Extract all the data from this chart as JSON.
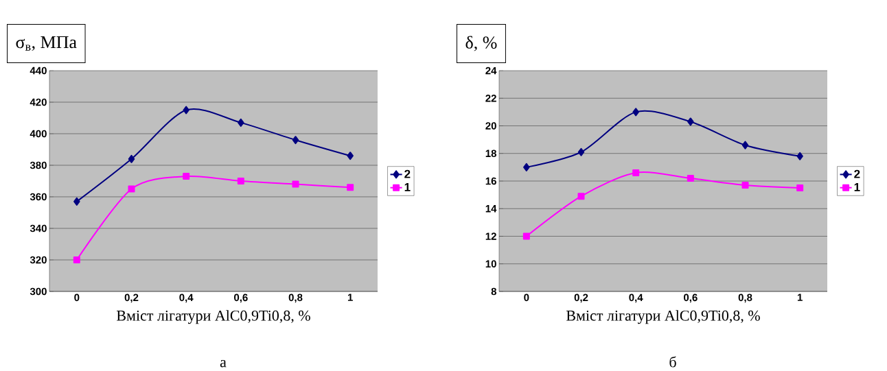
{
  "chart_data": [
    {
      "type": "line",
      "ylabel": "σ$_{в}$, МПа",
      "xlabel": "Вміст лігатури AlC0,9Ti0,8, %",
      "annotations": [
        "а"
      ],
      "categories": [
        "0",
        "0,2",
        "0,4",
        "0,6",
        "0,8",
        "1"
      ],
      "ylim": [
        300,
        440
      ],
      "yticks": [
        300,
        320,
        340,
        360,
        380,
        400,
        420,
        440
      ],
      "grid": "y",
      "legend": "right",
      "series": [
        {
          "name": "2",
          "color": "#000080",
          "marker": "diamond",
          "values": [
            357,
            384,
            415,
            407,
            396,
            386
          ]
        },
        {
          "name": "1",
          "color": "#ff00ff",
          "marker": "square",
          "values": [
            320,
            365,
            373,
            370,
            368,
            366
          ]
        }
      ]
    },
    {
      "type": "line",
      "ylabel": "δ, %",
      "xlabel": "Вміст лігатури AlC0,9Ti0,8, %",
      "annotations": [
        "б"
      ],
      "categories": [
        "0",
        "0,2",
        "0,4",
        "0,6",
        "0,8",
        "1"
      ],
      "ylim": [
        8,
        24
      ],
      "yticks": [
        8,
        10,
        12,
        14,
        16,
        18,
        20,
        22,
        24
      ],
      "grid": "y",
      "legend": "right",
      "series": [
        {
          "name": "2",
          "color": "#000080",
          "marker": "diamond",
          "values": [
            17,
            18.1,
            21,
            20.3,
            18.6,
            17.8
          ]
        },
        {
          "name": "1",
          "color": "#ff00ff",
          "marker": "square",
          "values": [
            12,
            14.9,
            16.6,
            16.2,
            15.7,
            15.5
          ]
        }
      ]
    }
  ]
}
